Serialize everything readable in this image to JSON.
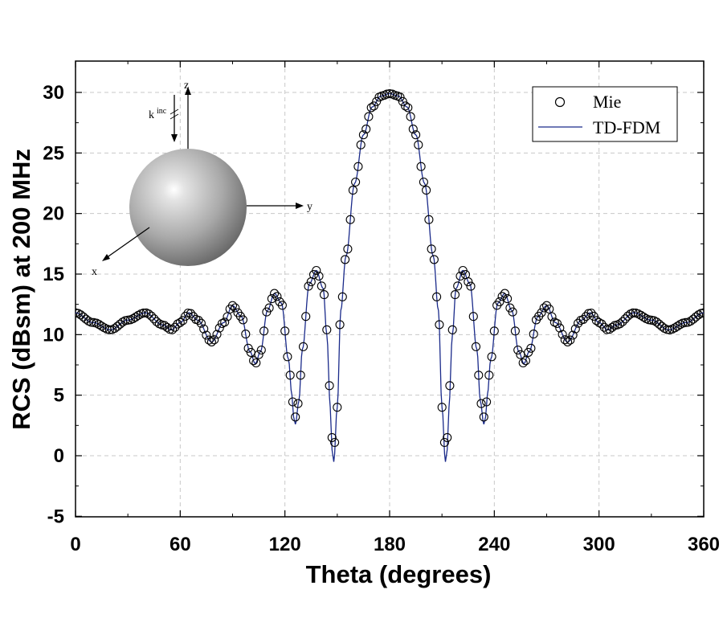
{
  "chart_data": {
    "type": "line",
    "xlabel": "Theta (degrees)",
    "ylabel": "RCS (dBsm) at 200 MHz",
    "xlim": [
      0,
      360
    ],
    "ylim": [
      -5,
      32
    ],
    "xticks": [
      0,
      60,
      120,
      180,
      240,
      300,
      360
    ],
    "yticks": [
      -5,
      0,
      5,
      10,
      15,
      20,
      25,
      30
    ],
    "xtick_labels": [
      "0",
      "60",
      "120",
      "180",
      "240",
      "300",
      "360"
    ],
    "ytick_labels": [
      "-5",
      "0",
      "5",
      "10",
      "15",
      "20",
      "25",
      "30"
    ],
    "grid": true,
    "legend": {
      "position": "top-right",
      "entries": [
        "Mie",
        "TD-FDM"
      ]
    },
    "series": [
      {
        "name": "Mie",
        "style": "markers",
        "marker": "open-circle",
        "x": [
          0,
          10,
          20,
          30,
          40,
          50,
          55,
          60,
          65,
          70,
          78,
          85,
          90,
          95,
          100,
          103,
          106,
          110,
          114,
          118,
          122,
          124,
          125,
          126,
          128,
          130,
          134,
          138,
          142,
          144,
          146,
          147,
          148,
          150,
          152,
          155,
          160,
          165,
          170,
          175,
          180
        ],
        "y": [
          11.8,
          11.0,
          10.4,
          11.2,
          11.8,
          10.8,
          10.4,
          11.0,
          11.8,
          11.2,
          9.4,
          11.0,
          12.4,
          11.5,
          8.6,
          7.6,
          8.6,
          12.0,
          13.4,
          12.6,
          8.0,
          5.3,
          3.6,
          3.2,
          4.5,
          8.8,
          14.2,
          15.3,
          13.8,
          10.4,
          5.0,
          1.5,
          0.6,
          4.0,
          12.0,
          16.5,
          22.5,
          26.5,
          28.8,
          29.7,
          29.9
        ]
      },
      {
        "name": "TD-FDM",
        "style": "line",
        "color": "#1a2a8a",
        "x": [
          0,
          10,
          20,
          30,
          40,
          50,
          55,
          60,
          65,
          70,
          78,
          85,
          90,
          95,
          100,
          103,
          106,
          110,
          114,
          118,
          122,
          124,
          125,
          126,
          128,
          130,
          134,
          138,
          142,
          144,
          146,
          147,
          148,
          150,
          152,
          155,
          160,
          165,
          170,
          175,
          180
        ],
        "y": [
          11.8,
          11.0,
          10.4,
          11.2,
          11.8,
          10.8,
          10.4,
          11.0,
          11.8,
          11.2,
          9.4,
          11.0,
          12.4,
          11.5,
          8.6,
          7.6,
          8.6,
          12.0,
          13.4,
          12.6,
          8.0,
          5.0,
          3.2,
          2.6,
          4.5,
          8.8,
          14.2,
          15.3,
          13.8,
          10.0,
          4.0,
          0.5,
          -0.5,
          4.0,
          12.0,
          16.5,
          22.5,
          26.5,
          28.8,
          29.7,
          29.9
        ]
      }
    ],
    "symmetry": "mirror about theta = 180",
    "inset": {
      "description": "sphere with incident wave along -z",
      "labels": {
        "z": "z",
        "y": "y",
        "x": "x",
        "k": "k",
        "k_sup": "inc"
      }
    }
  }
}
